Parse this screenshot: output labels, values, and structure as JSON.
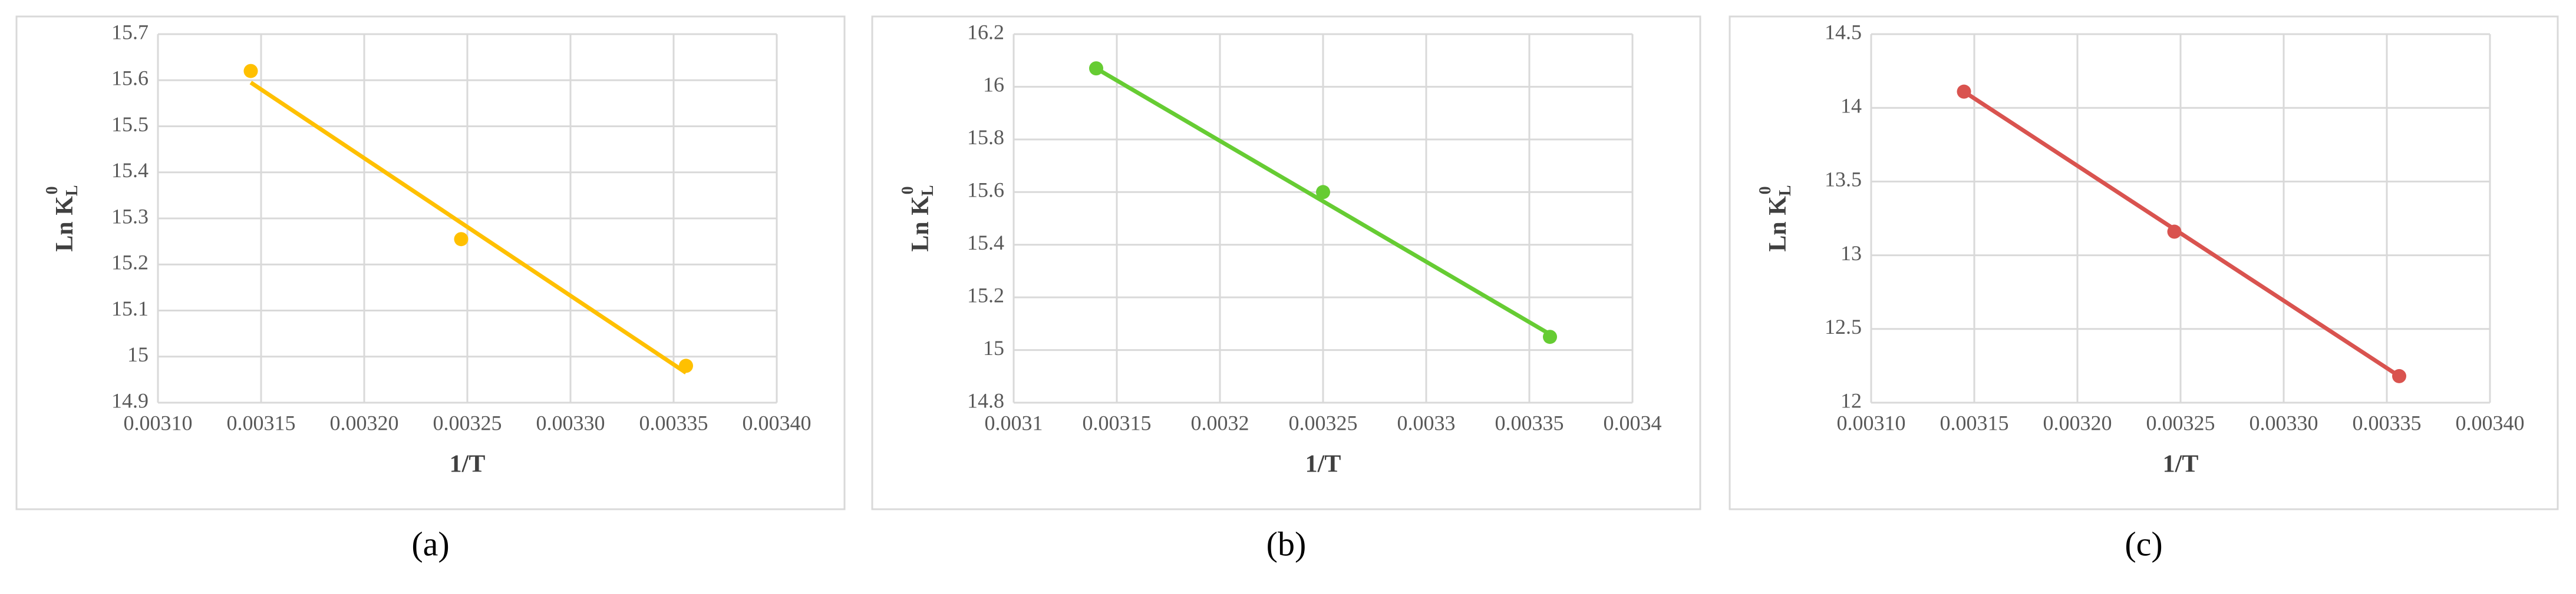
{
  "chart_data": [
    {
      "type": "scatter",
      "panel_label": "(a)",
      "x_label": "1/T",
      "y_label": {
        "base": "Ln K",
        "sub": "L",
        "sup": "0"
      },
      "x": [
        0.003145,
        0.003247,
        0.003356
      ],
      "values": [
        15.62,
        15.255,
        14.98
      ],
      "color": "#ffc000",
      "trendline": {
        "x": [
          0.003145,
          0.003356
        ],
        "y": [
          15.595,
          14.965
        ]
      },
      "xlim": [
        0.0031,
        0.0034
      ],
      "xticks": [
        {
          "value": 0.0031,
          "label": "0.00310"
        },
        {
          "value": 0.00315,
          "label": "0.00315"
        },
        {
          "value": 0.0032,
          "label": "0.00320"
        },
        {
          "value": 0.00325,
          "label": "0.00325"
        },
        {
          "value": 0.0033,
          "label": "0.00330"
        },
        {
          "value": 0.00335,
          "label": "0.00335"
        },
        {
          "value": 0.0034,
          "label": "0.00340"
        }
      ],
      "ylim": [
        14.9,
        15.7
      ],
      "yticks": [
        14.9,
        15,
        15.1,
        15.2,
        15.3,
        15.4,
        15.5,
        15.6,
        15.7
      ],
      "grid": true
    },
    {
      "type": "scatter",
      "panel_label": "(b)",
      "x_label": "1/T",
      "y_label": {
        "base": "Ln K",
        "sub": "L",
        "sup": "0"
      },
      "x": [
        0.00314,
        0.00325,
        0.00336
      ],
      "values": [
        16.07,
        15.6,
        15.05
      ],
      "color": "#66cc33",
      "trendline": {
        "x": [
          0.00314,
          0.00336
        ],
        "y": [
          16.07,
          15.06
        ]
      },
      "xlim": [
        0.0031,
        0.0034
      ],
      "xticks": [
        0.0031,
        0.00315,
        0.0032,
        0.00325,
        0.0033,
        0.00335,
        0.0034
      ],
      "ylim": [
        14.8,
        16.2
      ],
      "yticks": [
        14.8,
        15,
        15.2,
        15.4,
        15.6,
        15.8,
        16,
        16.2
      ],
      "grid": true
    },
    {
      "type": "scatter",
      "panel_label": "(c)",
      "x_label": "1/T",
      "y_label": {
        "base": "Ln K",
        "sub": "L",
        "sup": "0"
      },
      "x": [
        0.003145,
        0.003247,
        0.003356
      ],
      "values": [
        14.11,
        13.16,
        12.18
      ],
      "color": "#d9534f",
      "trendline": {
        "x": [
          0.003145,
          0.003356
        ],
        "y": [
          14.11,
          12.18
        ]
      },
      "xlim": [
        0.0031,
        0.0034
      ],
      "xticks": [
        {
          "value": 0.0031,
          "label": "0.00310"
        },
        {
          "value": 0.00315,
          "label": "0.00315"
        },
        {
          "value": 0.0032,
          "label": "0.00320"
        },
        {
          "value": 0.00325,
          "label": "0.00325"
        },
        {
          "value": 0.0033,
          "label": "0.00330"
        },
        {
          "value": 0.00335,
          "label": "0.00335"
        },
        {
          "value": 0.0034,
          "label": "0.00340"
        }
      ],
      "ylim": [
        12,
        14.5
      ],
      "yticks": [
        12,
        12.5,
        13,
        13.5,
        14,
        14.5
      ],
      "grid": true
    }
  ]
}
